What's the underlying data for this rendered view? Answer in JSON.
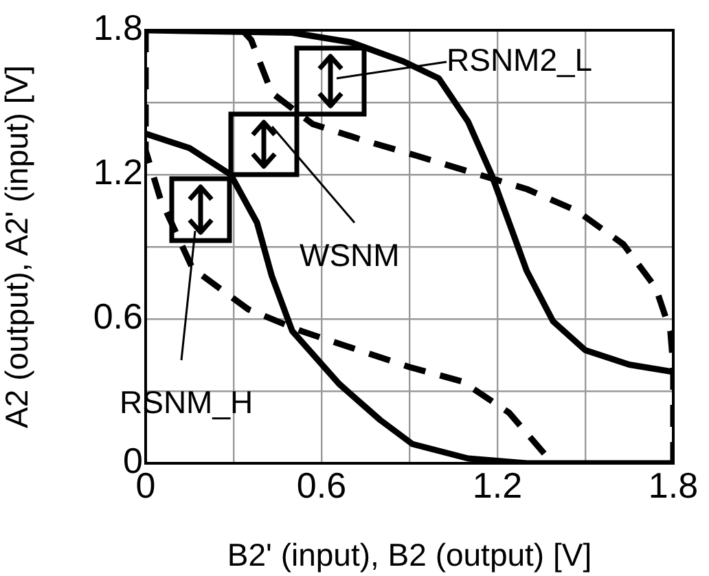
{
  "chart_data": {
    "type": "line",
    "xlabel": "B2' (input), B2 (output) [V]",
    "ylabel": "A2 (output), A2' (input) [V]",
    "xlim": [
      0,
      1.8
    ],
    "ylim": [
      0,
      1.8
    ],
    "xticks": [
      0,
      {
        "value": 0.3,
        "label": null
      },
      0.6,
      {
        "value": 0.9,
        "label": null
      },
      1.2,
      {
        "value": 1.5,
        "label": null
      },
      1.8
    ],
    "yticks": [
      0,
      {
        "value": 0.3,
        "label": null
      },
      0.6,
      {
        "value": 0.9,
        "label": null
      },
      1.2,
      {
        "value": 1.5,
        "label": null
      },
      1.8
    ],
    "grid": true,
    "legend": false,
    "marker": "none",
    "series": [
      {
        "color": "#000000",
        "line_style": "solid",
        "x": [
          0,
          0.5,
          0.7,
          0.88,
          1.0,
          1.1,
          1.18,
          1.3,
          1.39,
          1.5,
          1.65,
          1.8
        ],
        "values": [
          1.8,
          1.79,
          1.75,
          1.67,
          1.6,
          1.42,
          1.2,
          0.8,
          0.59,
          0.47,
          0.41,
          0.38
        ]
      },
      {
        "color": "#000000",
        "line_style": "solid",
        "x": [
          0,
          0.15,
          0.29,
          0.38,
          0.43,
          0.5,
          0.66,
          0.8,
          0.91,
          1.1,
          1.3,
          1.8
        ],
        "values": [
          1.37,
          1.31,
          1.2,
          1.0,
          0.78,
          0.55,
          0.33,
          0.18,
          0.08,
          0.02,
          0,
          0
        ]
      },
      {
        "color": "#000000",
        "line_style": "dashed",
        "x": [
          0,
          0,
          0.05,
          0.16,
          0.35,
          0.53,
          0.9,
          1.08,
          1.24,
          1.36,
          1.38
        ],
        "values": [
          1.8,
          1.3,
          1.1,
          0.81,
          0.64,
          0.55,
          0.4,
          0.34,
          0.21,
          0.04,
          0
        ]
      },
      {
        "color": "#000000",
        "line_style": "dashed",
        "x": [
          0.33,
          0.36,
          0.43,
          0.57,
          0.75,
          0.92,
          1.11,
          1.3,
          1.47,
          1.63,
          1.74,
          1.79,
          1.8,
          1.8
        ],
        "values": [
          1.8,
          1.76,
          1.54,
          1.41,
          1.34,
          1.28,
          1.21,
          1.14,
          1.05,
          0.91,
          0.73,
          0.55,
          0.4,
          0
        ]
      }
    ],
    "annotations": [
      "RSNM2_L",
      "WSNM",
      "RSNM_H"
    ]
  }
}
